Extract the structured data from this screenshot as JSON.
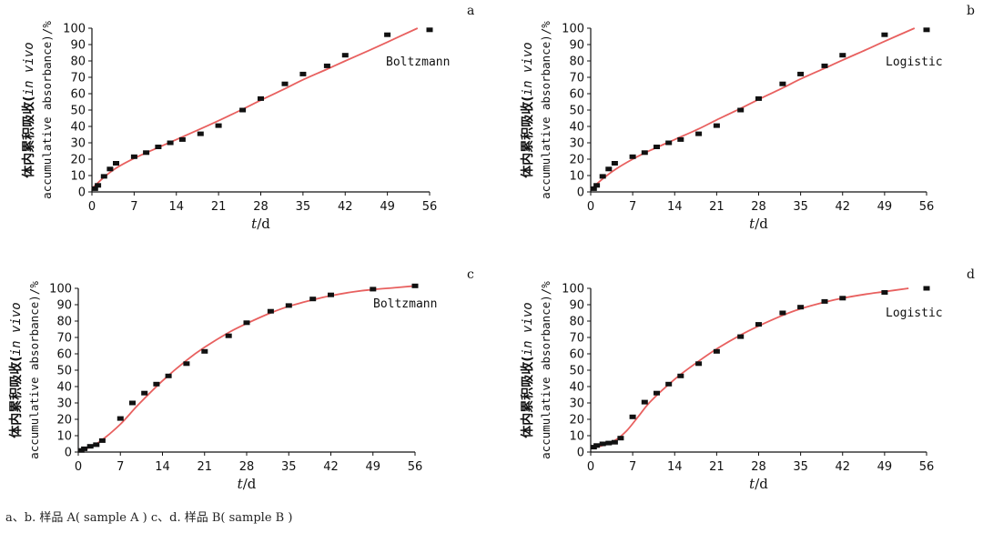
{
  "caption": "a、b. 样品 A( sample A )   c、d. 样品 B( sample B )",
  "colors": {
    "fit_line": "#e8605f",
    "points": "#111111",
    "axis": "#111111"
  },
  "chart_data": [
    {
      "panel": "a",
      "type": "scatter",
      "model_label": "Boltzmann",
      "ylabel_cn": "体内累积吸收(",
      "ylabel_it": "in vivo",
      "ylabel_en": "accumulative absorbance)/%",
      "xlabel_it": "t",
      "xlabel_unit": "/d",
      "xlim": [
        0,
        56
      ],
      "ylim": [
        0,
        100
      ],
      "xticks": [
        0,
        7,
        14,
        21,
        28,
        35,
        42,
        49,
        56
      ],
      "yticks": [
        0,
        10,
        20,
        30,
        40,
        50,
        60,
        70,
        80,
        90,
        100
      ],
      "x": [
        0.5,
        1,
        2,
        3,
        4,
        7,
        9,
        11,
        13,
        15,
        18,
        21,
        25,
        28,
        32,
        35,
        39,
        42,
        49,
        56
      ],
      "y": [
        2,
        4,
        9.5,
        14,
        17.5,
        21.5,
        24,
        27.5,
        30,
        32,
        35.5,
        40.5,
        50,
        57,
        66,
        72,
        77,
        83.5,
        96,
        99
      ],
      "fit_x": [
        0,
        2,
        4,
        7,
        10,
        14,
        18,
        21,
        25,
        28,
        32,
        35,
        39,
        42,
        46,
        49,
        54
      ],
      "fit_y": [
        2,
        9,
        14.5,
        20.5,
        25.5,
        32,
        38.5,
        43.5,
        50.5,
        56,
        63,
        68.5,
        75,
        80,
        86.5,
        91.5,
        100
      ]
    },
    {
      "panel": "b",
      "type": "scatter",
      "model_label": "Logistic",
      "ylabel_cn": "体内累积吸收(",
      "ylabel_it": "in vivo",
      "ylabel_en": "accumulative absorbance)/%",
      "xlabel_it": "t",
      "xlabel_unit": "/d",
      "xlim": [
        0,
        56
      ],
      "ylim": [
        0,
        100
      ],
      "xticks": [
        0,
        7,
        14,
        21,
        28,
        35,
        42,
        49,
        56
      ],
      "yticks": [
        0,
        10,
        20,
        30,
        40,
        50,
        60,
        70,
        80,
        90,
        100
      ],
      "x": [
        0.5,
        1,
        2,
        3,
        4,
        7,
        9,
        11,
        13,
        15,
        18,
        21,
        25,
        28,
        32,
        35,
        39,
        42,
        49,
        56
      ],
      "y": [
        2,
        4,
        9.5,
        14,
        17.5,
        21.5,
        24,
        27.5,
        30,
        32,
        35.5,
        40.5,
        50,
        57,
        66,
        72,
        77,
        83.5,
        96,
        99
      ],
      "fit_x": [
        0,
        2,
        4,
        7,
        10,
        14,
        18,
        21,
        25,
        28,
        32,
        35,
        39,
        42,
        46,
        49,
        54
      ],
      "fit_y": [
        1.5,
        8,
        13.5,
        20,
        25.5,
        32,
        38.5,
        44,
        51,
        56.5,
        63.5,
        69,
        75.5,
        80.5,
        87,
        92,
        100
      ]
    },
    {
      "panel": "c",
      "type": "scatter",
      "model_label": "Boltzmann",
      "ylabel_cn": "体内累积吸收(",
      "ylabel_it": "in vivo",
      "ylabel_en": "accumulative absorbance)/%",
      "xlabel_it": "t",
      "xlabel_unit": "/d",
      "xlim": [
        0,
        56
      ],
      "ylim": [
        0,
        100
      ],
      "xticks": [
        0,
        7,
        14,
        21,
        28,
        35,
        42,
        49,
        56
      ],
      "yticks": [
        0,
        10,
        20,
        30,
        40,
        50,
        60,
        70,
        80,
        90,
        100
      ],
      "x": [
        0.5,
        1,
        2,
        3,
        4,
        7,
        9,
        11,
        13,
        15,
        18,
        21,
        25,
        28,
        32,
        35,
        39,
        42,
        49,
        56
      ],
      "y": [
        1,
        2,
        3.5,
        4.5,
        7,
        20.5,
        30,
        36,
        41.5,
        46.5,
        54,
        61.5,
        71,
        79,
        86,
        89.5,
        93.5,
        96,
        99.5,
        101.5
      ],
      "fit_x": [
        0,
        2,
        4,
        7,
        10,
        14,
        18,
        21,
        25,
        28,
        32,
        35,
        39,
        42,
        46,
        49,
        53,
        56
      ],
      "fit_y": [
        1,
        3,
        7.5,
        17,
        29,
        43.5,
        56,
        64,
        73,
        78.5,
        85,
        89,
        93,
        95.5,
        98,
        99.3,
        100.5,
        101.5
      ]
    },
    {
      "panel": "d",
      "type": "scatter",
      "model_label": "Logistic",
      "ylabel_cn": "体内累积吸收(",
      "ylabel_it": "in vivo",
      "ylabel_en": "accumulative absorbance)/%",
      "xlabel_it": "t",
      "xlabel_unit": "/d",
      "xlim": [
        0,
        56
      ],
      "ylim": [
        0,
        100
      ],
      "xticks": [
        0,
        7,
        14,
        21,
        28,
        35,
        42,
        49,
        56
      ],
      "yticks": [
        0,
        10,
        20,
        30,
        40,
        50,
        60,
        70,
        80,
        90,
        100
      ],
      "x": [
        0.5,
        1,
        2,
        3,
        4,
        5,
        7,
        9,
        11,
        13,
        15,
        18,
        21,
        25,
        28,
        32,
        35,
        39,
        42,
        49,
        56
      ],
      "y": [
        3,
        4,
        5,
        5.5,
        6,
        8.5,
        21.5,
        30.5,
        36,
        41.5,
        46.5,
        54,
        61.5,
        70.5,
        78,
        85,
        88.5,
        92,
        94,
        97.5,
        100
      ],
      "fit_x": [
        0,
        2,
        4,
        6,
        8,
        10,
        14,
        18,
        21,
        25,
        28,
        32,
        35,
        39,
        42,
        46,
        49,
        53
      ],
      "fit_y": [
        2.5,
        4,
        7,
        13,
        22,
        31,
        44.5,
        55.5,
        63,
        71.5,
        77,
        83.5,
        87.5,
        91.5,
        94,
        96.5,
        98,
        100
      ]
    }
  ]
}
